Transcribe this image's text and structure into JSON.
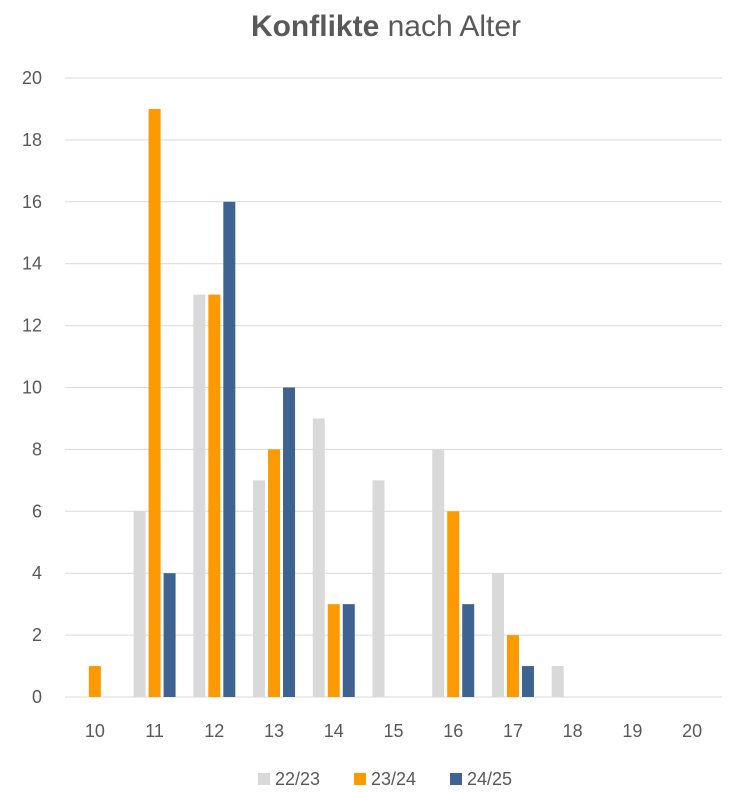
{
  "chart_data": {
    "type": "bar",
    "title_bold": "Konflikte",
    "title_rest": " nach Alter",
    "categories": [
      "10",
      "11",
      "12",
      "13",
      "14",
      "15",
      "16",
      "17",
      "18",
      "19",
      "20"
    ],
    "series": [
      {
        "name": "22/23",
        "color": "#d9d9d9",
        "values": [
          0,
          6,
          13,
          7,
          9,
          7,
          8,
          4,
          1,
          0,
          0
        ]
      },
      {
        "name": "23/24",
        "color": "#ff9900",
        "values": [
          1,
          19,
          13,
          8,
          3,
          0,
          6,
          2,
          0,
          0,
          0
        ]
      },
      {
        "name": "24/25",
        "color": "#3f6390",
        "values": [
          0,
          4,
          16,
          10,
          3,
          0,
          3,
          1,
          0,
          0,
          0
        ]
      }
    ],
    "ylim": [
      0,
      20
    ],
    "yticks": [
      0,
      2,
      4,
      6,
      8,
      10,
      12,
      14,
      16,
      18,
      20
    ],
    "grid": true,
    "legend_position": "bottom"
  }
}
